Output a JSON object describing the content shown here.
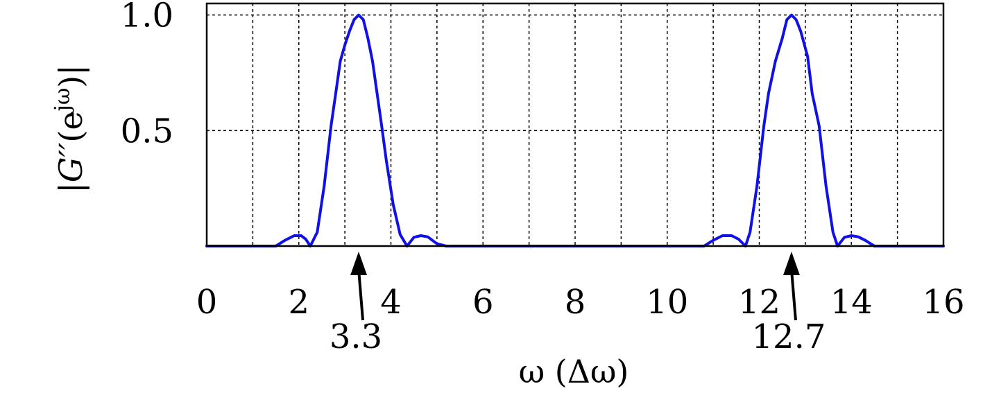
{
  "chart_data": {
    "type": "line",
    "xlabel": "ω (Δω)",
    "ylabel": "|G′′(e^{jω})|",
    "ylabel_parts": {
      "bar_left": "|",
      "main": "G′′",
      "paren_open": "(e",
      "sup": "jω",
      "paren_close": ")",
      "bar_right": "|"
    },
    "xlim": [
      0,
      16
    ],
    "ylim": [
      0,
      1.05
    ],
    "xticks": [
      0,
      2,
      4,
      6,
      8,
      10,
      12,
      14,
      16
    ],
    "xtick_labels": [
      "0",
      "2",
      "4",
      "6",
      "8",
      "10",
      "12",
      "14",
      "16"
    ],
    "yticks": [
      0.5,
      1.0
    ],
    "ytick_labels": [
      "0.5",
      "1.0"
    ],
    "grid": true,
    "grid_x": [
      1,
      2,
      3,
      4,
      5,
      6,
      7,
      8,
      9,
      10,
      11,
      12,
      13,
      14,
      15
    ],
    "grid_y": [
      0.5,
      1.0
    ],
    "line_color": "#1010e8",
    "series": [
      {
        "x": [
          0.0,
          1.5,
          1.7,
          1.9,
          2.05,
          2.15,
          2.25,
          2.4,
          2.55,
          2.7,
          2.8,
          2.9,
          3.0,
          3.1,
          3.2,
          3.3,
          3.4,
          3.5,
          3.6,
          3.7,
          3.8,
          3.9,
          4.05,
          4.2,
          4.35,
          4.5,
          4.65,
          4.8,
          5.0,
          5.2,
          10.8,
          11.0,
          11.2,
          11.4,
          11.55,
          11.7,
          11.8,
          11.95,
          12.1,
          12.2,
          12.35,
          12.5,
          12.6,
          12.7,
          12.8,
          12.9,
          13.05,
          13.15,
          13.3,
          13.45,
          13.6,
          13.7,
          13.85,
          14.0,
          14.15,
          14.3,
          14.5,
          16.0
        ],
        "y": [
          0.0,
          0.0,
          0.025,
          0.045,
          0.045,
          0.03,
          0.0,
          0.06,
          0.26,
          0.52,
          0.66,
          0.8,
          0.87,
          0.93,
          0.98,
          1.0,
          0.98,
          0.9,
          0.8,
          0.66,
          0.52,
          0.37,
          0.18,
          0.05,
          0.0,
          0.038,
          0.045,
          0.04,
          0.01,
          0.0,
          0.0,
          0.025,
          0.045,
          0.045,
          0.03,
          0.0,
          0.06,
          0.26,
          0.52,
          0.66,
          0.8,
          0.9,
          0.98,
          1.0,
          0.98,
          0.93,
          0.82,
          0.66,
          0.52,
          0.26,
          0.06,
          0.0,
          0.038,
          0.045,
          0.04,
          0.025,
          0.0,
          0.0
        ]
      }
    ],
    "annotations": [
      {
        "x": 3.3,
        "label": "3.3"
      },
      {
        "x": 12.7,
        "label": "12.7"
      }
    ]
  }
}
